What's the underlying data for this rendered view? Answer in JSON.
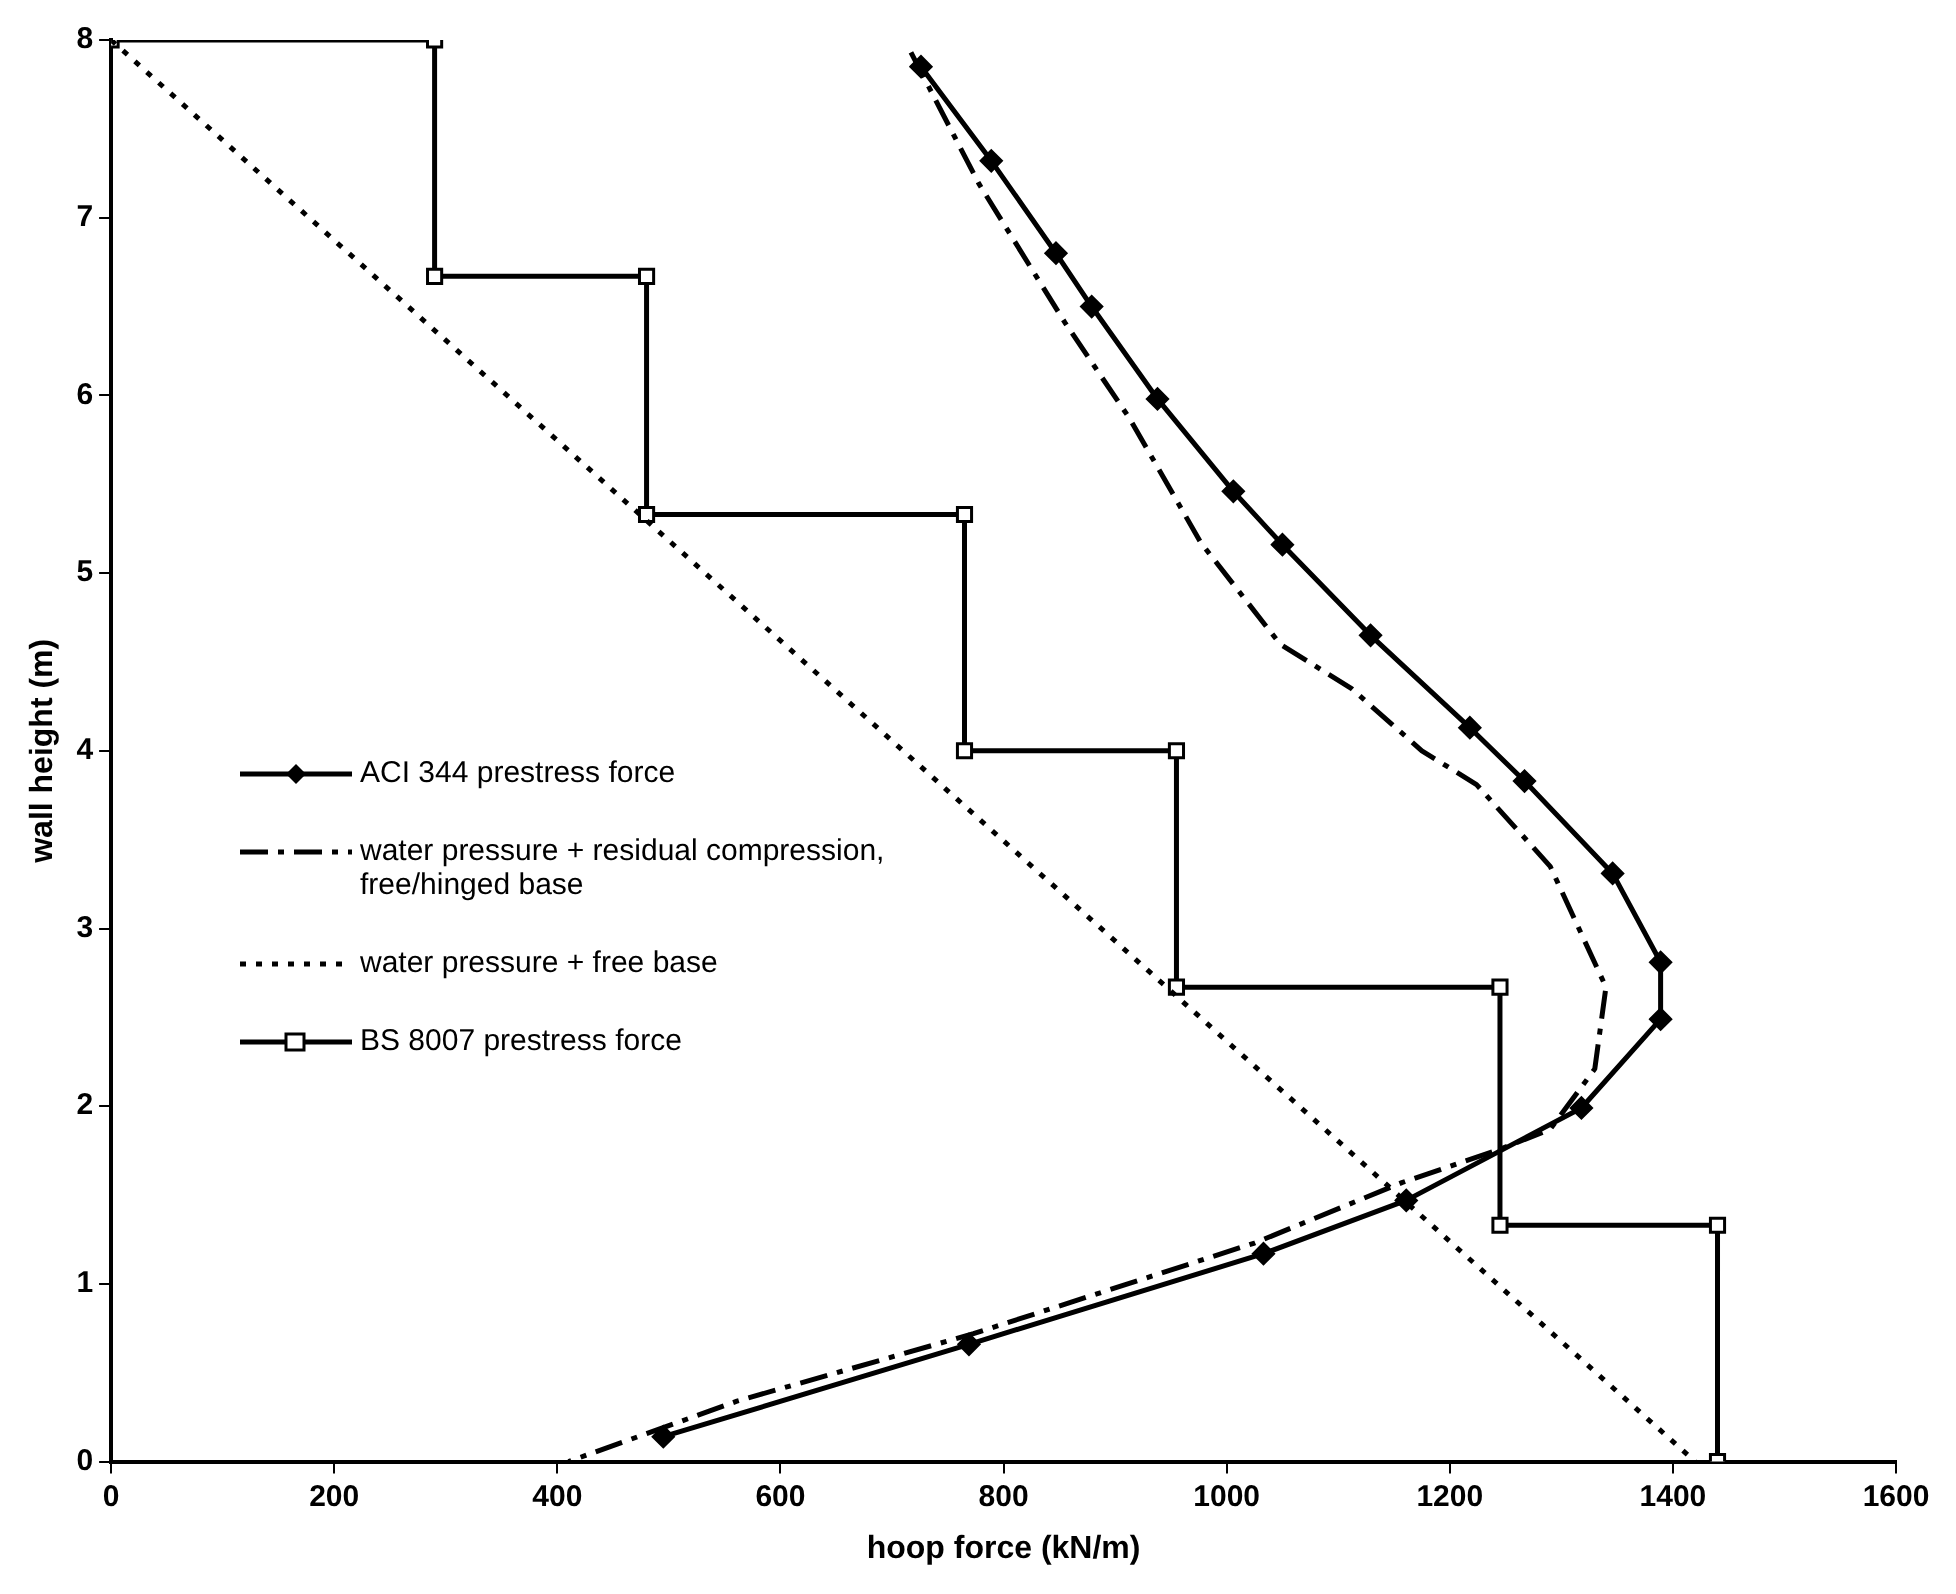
{
  "chart_data": {
    "type": "line",
    "xlabel": "hoop force (kN/m)",
    "ylabel": "wall height (m)",
    "xlim": [
      0,
      1600
    ],
    "xticks": [
      0,
      200,
      400,
      600,
      800,
      1000,
      1200,
      1400,
      1600
    ],
    "ylim": [
      0,
      8
    ],
    "yticks": [
      0,
      1,
      2,
      3,
      4,
      5,
      6,
      7,
      8
    ],
    "grid": false,
    "legend": "left",
    "series": [
      {
        "name": "ACI 344 prestress force",
        "color": "#000000",
        "marker": "diamond",
        "line_style": "solid",
        "x": [
          726,
          789,
          847,
          879,
          938,
          1006,
          1050,
          1129,
          1218,
          1267,
          1346,
          1389,
          1389,
          1318,
          1161,
          1033,
          769,
          495
        ],
        "values": [
          7.85,
          7.32,
          6.8,
          6.5,
          5.98,
          5.46,
          5.16,
          4.65,
          4.13,
          3.83,
          3.31,
          2.81,
          2.49,
          1.99,
          1.47,
          1.17,
          0.66,
          0.14
        ]
      },
      {
        "name": "water pressure + residual compression, free/hinged base",
        "color": "#000000",
        "line_style": "dashed",
        "x": [
          717,
          778,
          855,
          913,
          977,
          1048,
          1112,
          1175,
          1224,
          1290,
          1340,
          1330,
          1290,
          1246,
          1157,
          1025,
          773,
          561,
          410
        ],
        "values": [
          7.93,
          7.19,
          6.41,
          5.87,
          5.17,
          4.6,
          4.35,
          4.0,
          3.81,
          3.35,
          2.67,
          2.21,
          1.87,
          1.76,
          1.57,
          1.23,
          0.72,
          0.34,
          0
        ]
      },
      {
        "name": "water pressure + free base",
        "color": "#000000",
        "line_style": "dotted",
        "x": [
          0,
          1420
        ],
        "values": [
          8,
          0
        ]
      },
      {
        "name": "BS 8007 prestress force",
        "color": "#000000",
        "marker": "square",
        "line_style": "solid",
        "x": [
          0,
          290,
          290,
          480,
          480,
          765,
          765,
          955,
          955,
          1245,
          1245,
          1440,
          1440
        ],
        "values": [
          8,
          8,
          6.67,
          6.67,
          5.33,
          5.33,
          4,
          4,
          2.67,
          2.67,
          1.33,
          1.33,
          0
        ]
      }
    ]
  }
}
